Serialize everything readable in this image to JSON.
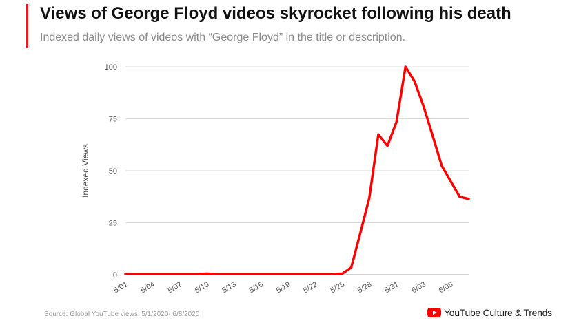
{
  "header": {
    "title": "Views of George Floyd videos skyrocket following his death",
    "subtitle": "Indexed daily views of videos with “George Floyd” in the title or description."
  },
  "footer": {
    "source": "Source: Global YouTube views, 5/1/2020- 6/8/2020",
    "logo_text": "YouTube Culture & Trends",
    "logo_icon": "youtube-play-icon"
  },
  "colors": {
    "accent": "#e31b23",
    "line": "#ff0000",
    "grid": "#d9d9d9"
  },
  "chart_data": {
    "type": "line",
    "title": "Views of George Floyd videos skyrocket following his death",
    "subtitle": "Indexed daily views of videos with “George Floyd” in the title or description.",
    "xlabel": "",
    "ylabel": "Indexed Views",
    "ylim": [
      0,
      100
    ],
    "yticks": [
      0,
      25,
      50,
      75,
      100
    ],
    "xticks": [
      "5/01",
      "5/04",
      "5/07",
      "5/10",
      "5/13",
      "5/16",
      "5/19",
      "5/22",
      "5/25",
      "5/28",
      "5/31",
      "6/03",
      "6/06"
    ],
    "grid": "horizontal",
    "legend": "none",
    "x": [
      "5/01",
      "5/02",
      "5/03",
      "5/04",
      "5/05",
      "5/06",
      "5/07",
      "5/08",
      "5/09",
      "5/10",
      "5/11",
      "5/12",
      "5/13",
      "5/14",
      "5/15",
      "5/16",
      "5/17",
      "5/18",
      "5/19",
      "5/20",
      "5/21",
      "5/22",
      "5/23",
      "5/24",
      "5/25",
      "5/26",
      "5/27",
      "5/28",
      "5/29",
      "5/30",
      "5/31",
      "6/01",
      "6/02",
      "6/03",
      "6/04",
      "6/05",
      "6/06",
      "6/07",
      "6/08"
    ],
    "series": [
      {
        "values": [
          0.3,
          0.3,
          0.3,
          0.3,
          0.3,
          0.3,
          0.3,
          0.3,
          0.3,
          0.5,
          0.3,
          0.3,
          0.3,
          0.3,
          0.3,
          0.3,
          0.3,
          0.3,
          0.3,
          0.3,
          0.3,
          0.3,
          0.3,
          0.3,
          0.5,
          3.5,
          20,
          37,
          67.5,
          62,
          73.5,
          100,
          93,
          81,
          67,
          52.5,
          45,
          37.5,
          36.5
        ]
      }
    ]
  }
}
